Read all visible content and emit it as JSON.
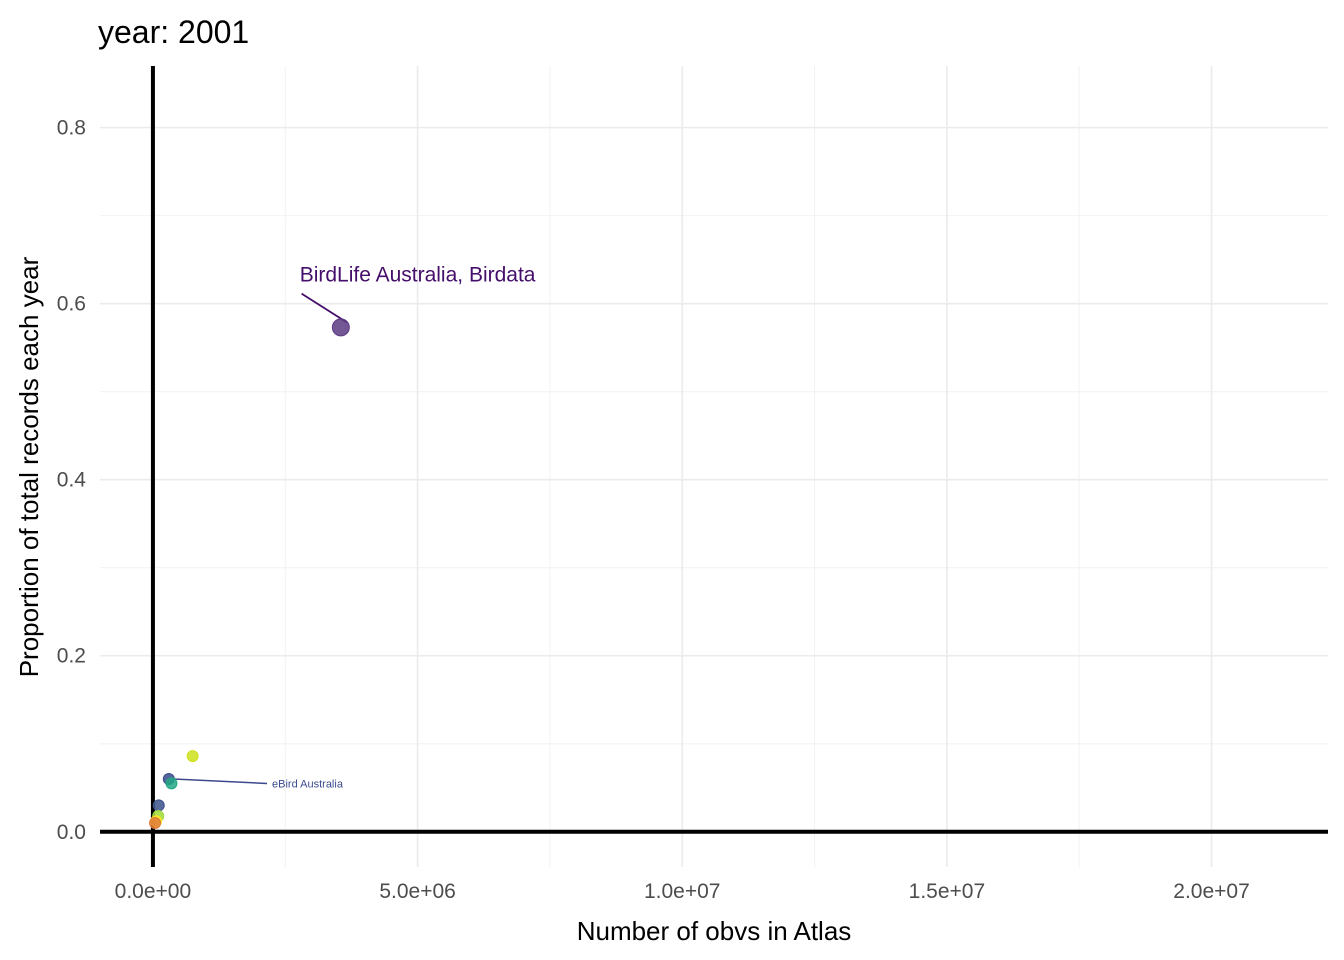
{
  "chart_data": {
    "type": "scatter",
    "title": "year: 2001",
    "xlabel": "Number of obvs in Atlas",
    "ylabel": "Proportion of total records each year",
    "xlim": [
      -1000000,
      22200000
    ],
    "ylim": [
      -0.04,
      0.87
    ],
    "x_ticks": [
      0,
      5000000,
      10000000,
      15000000,
      20000000
    ],
    "x_tick_labels": [
      "0.0e+00",
      "5.0e+06",
      "1.0e+07",
      "1.5e+07",
      "2.0e+07"
    ],
    "x_minor_ticks": [
      2500000,
      7500000,
      12500000,
      17500000
    ],
    "y_ticks": [
      0.0,
      0.2,
      0.4,
      0.6,
      0.8
    ],
    "y_tick_labels": [
      "0.0",
      "0.2",
      "0.4",
      "0.6",
      "0.8"
    ],
    "y_minor_ticks": [
      0.1,
      0.3,
      0.5,
      0.7
    ],
    "grid": true,
    "reference_lines": {
      "x": 0,
      "y": 0
    },
    "points": [
      {
        "x": 3550000,
        "y": 0.573,
        "color": "#5b3a82"
      },
      {
        "x": 750000,
        "y": 0.086,
        "color": "#cde11d"
      },
      {
        "x": 300000,
        "y": 0.06,
        "color": "#3a4a8c"
      },
      {
        "x": 350000,
        "y": 0.055,
        "color": "#22a884"
      },
      {
        "x": 110000,
        "y": 0.03,
        "color": "#3b528b"
      },
      {
        "x": 100000,
        "y": 0.018,
        "color": "#9fda3a"
      },
      {
        "x": 60000,
        "y": 0.012,
        "color": "#fde725"
      },
      {
        "x": 40000,
        "y": 0.01,
        "color": "#e07b39"
      }
    ],
    "annotations": [
      {
        "text": "BirdLife Australia, Birdata",
        "x": 5000000,
        "y": 0.625,
        "point_x": 3550000,
        "point_y": 0.573,
        "color": "#440e6b",
        "size": "large"
      },
      {
        "text": "eBird Australia",
        "x": 2250000,
        "y": 0.056,
        "point_x": 300000,
        "point_y": 0.06,
        "color": "#3b4a8c",
        "size": "small"
      }
    ]
  }
}
